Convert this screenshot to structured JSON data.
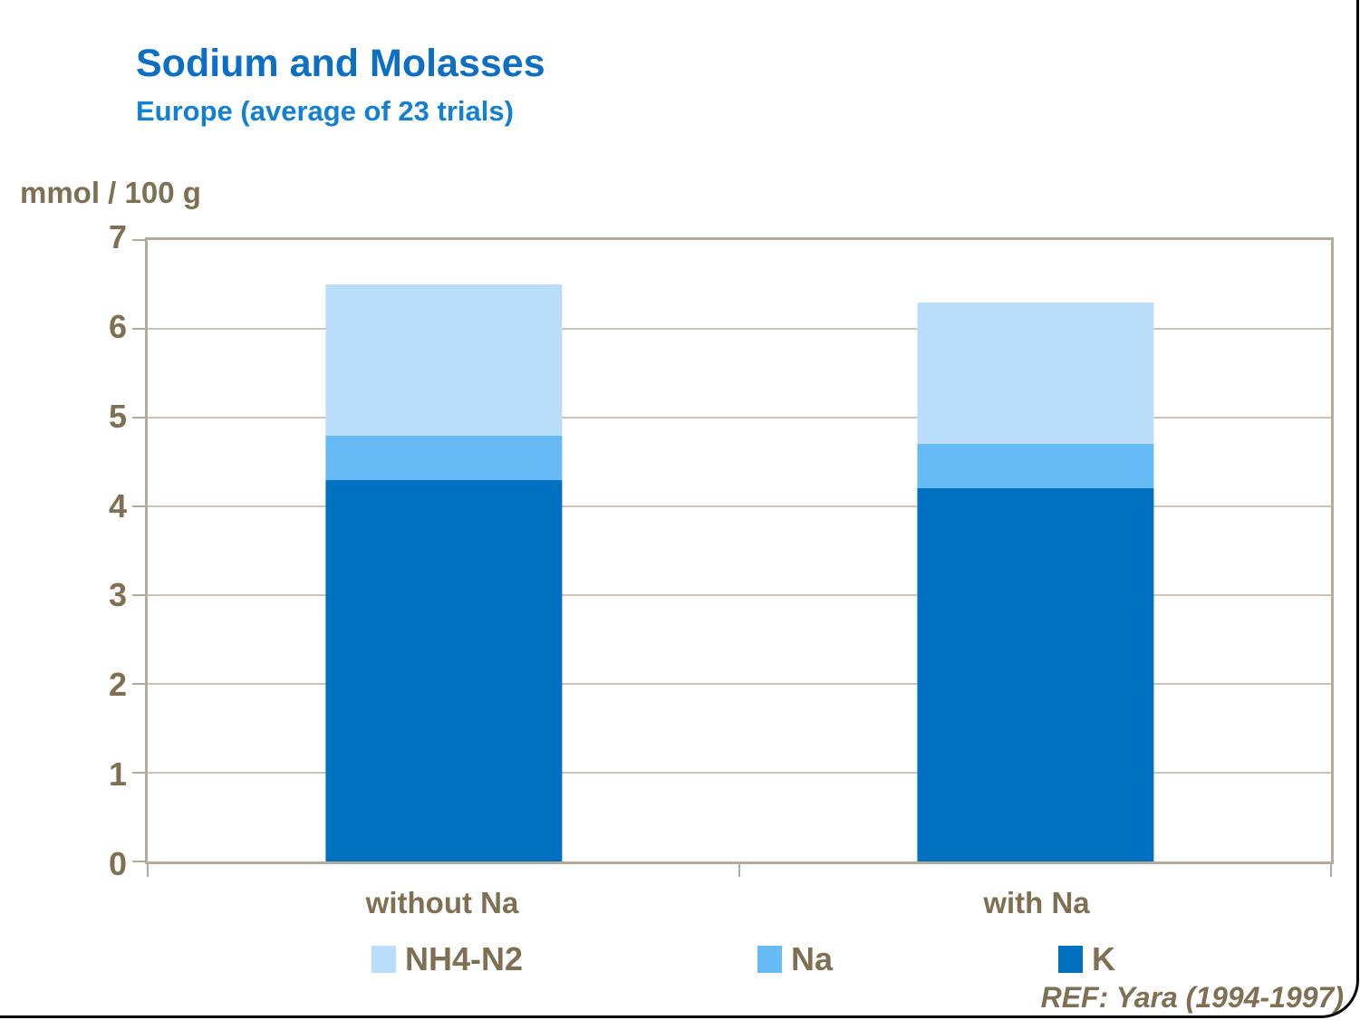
{
  "slide": {
    "title": "Sodium and Molasses",
    "subtitle": "Europe (average of 23 trials)",
    "reference": "REF: Yara (1994-1997)"
  },
  "colors": {
    "title_blue": "#0C6FC4",
    "subtitle_blue": "#1280D4",
    "text_brown": "#7F7054",
    "plot_border": "#B3AB9E",
    "gridline": "#CCC4B8",
    "series_k": "#0070C0",
    "series_na": "#66BBF7",
    "series_nh4_n2": "#B9DDFA",
    "slide_border": "#000000"
  },
  "chart_data": {
    "type": "bar",
    "stacked": true,
    "title": "Sodium and Molasses",
    "subtitle": "Europe (average of 23 trials)",
    "ylabel": "mmol / 100 g",
    "xlabel": "",
    "ylim": [
      0,
      7
    ],
    "yticks": [
      0,
      1,
      2,
      3,
      4,
      5,
      6,
      7
    ],
    "grid": true,
    "categories": [
      "without Na",
      "with Na"
    ],
    "series": [
      {
        "name": "K",
        "color": "#0070C0",
        "values": [
          4.3,
          4.2
        ]
      },
      {
        "name": "Na",
        "color": "#66BBF7",
        "values": [
          0.5,
          0.5
        ]
      },
      {
        "name": "NH4-N2",
        "color": "#B9DDFA",
        "values": [
          1.7,
          1.6
        ]
      }
    ],
    "totals": [
      6.5,
      6.3
    ],
    "legend_position": "bottom",
    "legend": [
      {
        "label": "NH4-N2",
        "color": "#B9DDFA"
      },
      {
        "label": "Na",
        "color": "#66BBF7"
      },
      {
        "label": "K",
        "color": "#0070C0"
      }
    ]
  }
}
